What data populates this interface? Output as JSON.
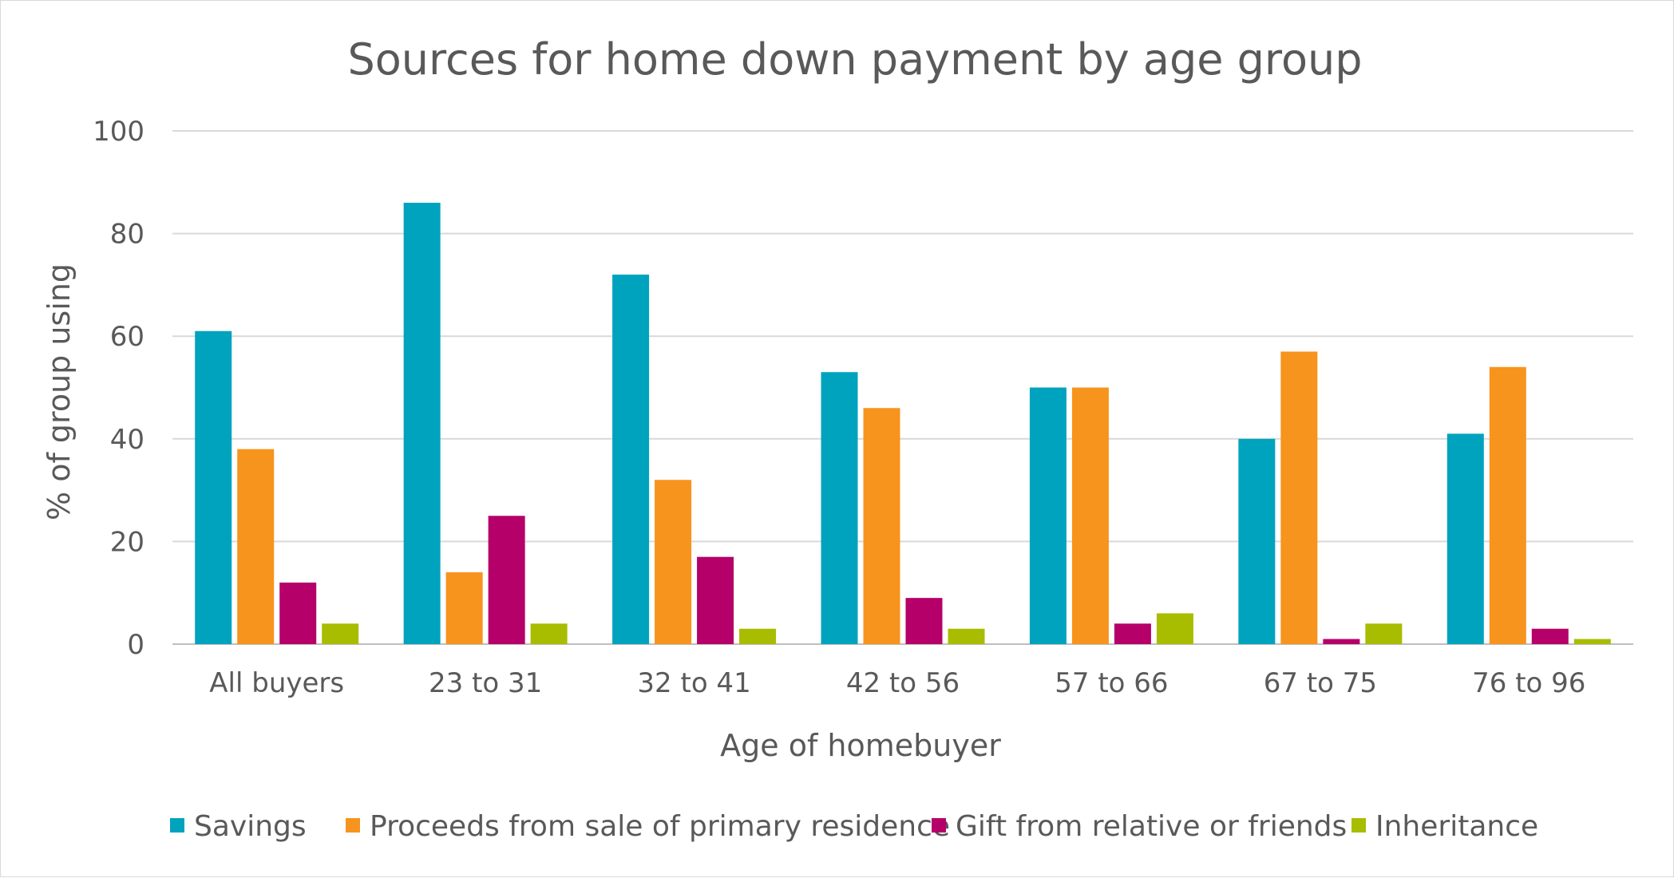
{
  "chart_data": {
    "type": "bar",
    "title": "Sources for home down payment by age group",
    "xlabel": "Age of homebuyer",
    "ylabel": "% of group using",
    "ylim": [
      0,
      100
    ],
    "yticks": [
      0,
      20,
      40,
      60,
      80,
      100
    ],
    "grid": true,
    "legend_position": "bottom",
    "categories": [
      "All buyers",
      "23 to 31",
      "32 to 41",
      "42 to 56",
      "57 to 66",
      "67 to 75",
      "76 to 96"
    ],
    "series": [
      {
        "name": "Savings",
        "color": "#00A3BE",
        "values": [
          61,
          86,
          72,
          53,
          50,
          40,
          41
        ]
      },
      {
        "name": "Proceeds from sale of primary residence",
        "color": "#F7941D",
        "values": [
          38,
          14,
          32,
          46,
          50,
          57,
          54
        ]
      },
      {
        "name": "Gift from relative or friends",
        "color": "#B5006A",
        "values": [
          12,
          25,
          17,
          9,
          4,
          1,
          3
        ]
      },
      {
        "name": "Inheritance",
        "color": "#A8BC00",
        "values": [
          4,
          4,
          3,
          3,
          6,
          4,
          1
        ]
      }
    ]
  }
}
